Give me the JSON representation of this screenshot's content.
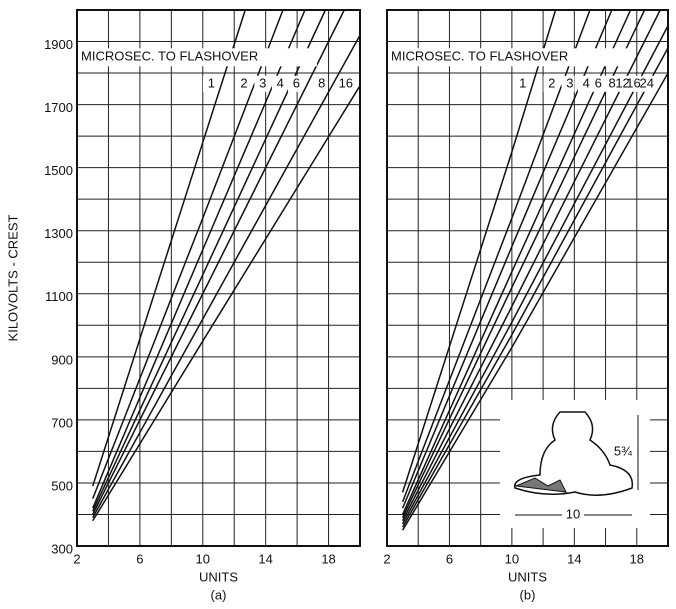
{
  "chart_data": [
    {
      "type": "line",
      "title": "MICROSEC. TO FLASHOVER",
      "xlabel": "UNITS",
      "ylabel": "KILOVOLTS - CREST",
      "caption": "(a)",
      "xlim": [
        2,
        20
      ],
      "ylim": [
        300,
        2000
      ],
      "xticks": [
        2,
        6,
        10,
        14,
        18
      ],
      "xminor": [
        4,
        8,
        12,
        16,
        20
      ],
      "yticks": [
        300,
        500,
        700,
        900,
        1100,
        1300,
        1500,
        1700,
        1900
      ],
      "yminor": [
        400,
        600,
        800,
        1000,
        1200,
        1400,
        1600,
        1800,
        2000
      ],
      "grid": true,
      "color": "#111111",
      "series": [
        {
          "name": "1",
          "x": [
            3,
            10,
            12.7
          ],
          "values": [
            490,
            1580,
            2000
          ]
        },
        {
          "name": "2",
          "x": [
            3,
            10,
            15.1
          ],
          "values": [
            450,
            1340,
            2000
          ]
        },
        {
          "name": "3",
          "x": [
            3,
            10,
            16.5
          ],
          "values": [
            420,
            1240,
            2000
          ]
        },
        {
          "name": "4",
          "x": [
            3,
            10,
            17.8
          ],
          "values": [
            410,
            1160,
            2000
          ]
        },
        {
          "name": "6",
          "x": [
            3,
            10,
            19
          ],
          "values": [
            400,
            1100,
            2000
          ]
        },
        {
          "name": "8",
          "x": [
            3,
            10,
            20
          ],
          "values": [
            390,
            1020,
            1920
          ]
        },
        {
          "name": "16",
          "x": [
            3,
            10,
            20
          ],
          "values": [
            380,
            950,
            1760
          ]
        }
      ]
    },
    {
      "type": "line",
      "title": "MICROSEC. TO FLASHOVER",
      "xlabel": "UNITS",
      "caption": "(b)",
      "xlim": [
        2,
        20
      ],
      "ylim": [
        300,
        2000
      ],
      "xticks": [
        2,
        6,
        10,
        14,
        18
      ],
      "xminor": [
        4,
        8,
        12,
        16,
        20
      ],
      "yminor": [
        400,
        600,
        800,
        1000,
        1200,
        1400,
        1600,
        1800,
        2000,
        300,
        500,
        700,
        900,
        1100,
        1300,
        1500,
        1700,
        1900
      ],
      "grid": true,
      "color": "#111111",
      "inset_labels": [
        "5¾",
        "10"
      ],
      "series": [
        {
          "name": "1",
          "x": [
            3,
            10,
            12.8
          ],
          "values": [
            470,
            1550,
            2000
          ]
        },
        {
          "name": "2",
          "x": [
            3,
            10,
            15
          ],
          "values": [
            440,
            1340,
            2000
          ]
        },
        {
          "name": "3",
          "x": [
            3,
            10,
            16.4
          ],
          "values": [
            420,
            1250,
            2000
          ]
        },
        {
          "name": "4",
          "x": [
            3,
            10,
            17.6
          ],
          "values": [
            400,
            1170,
            2000
          ]
        },
        {
          "name": "6",
          "x": [
            3,
            10,
            18.5
          ],
          "values": [
            390,
            1120,
            2000
          ]
        },
        {
          "name": "8",
          "x": [
            3,
            10,
            19.5
          ],
          "values": [
            380,
            1060,
            2000
          ]
        },
        {
          "name": "12",
          "x": [
            3,
            10,
            20
          ],
          "values": [
            370,
            1010,
            1950
          ]
        },
        {
          "name": "16",
          "x": [
            3,
            10,
            20
          ],
          "values": [
            360,
            970,
            1880
          ]
        },
        {
          "name": "24",
          "x": [
            3,
            10,
            20
          ],
          "values": [
            350,
            930,
            1800
          ]
        }
      ]
    }
  ]
}
